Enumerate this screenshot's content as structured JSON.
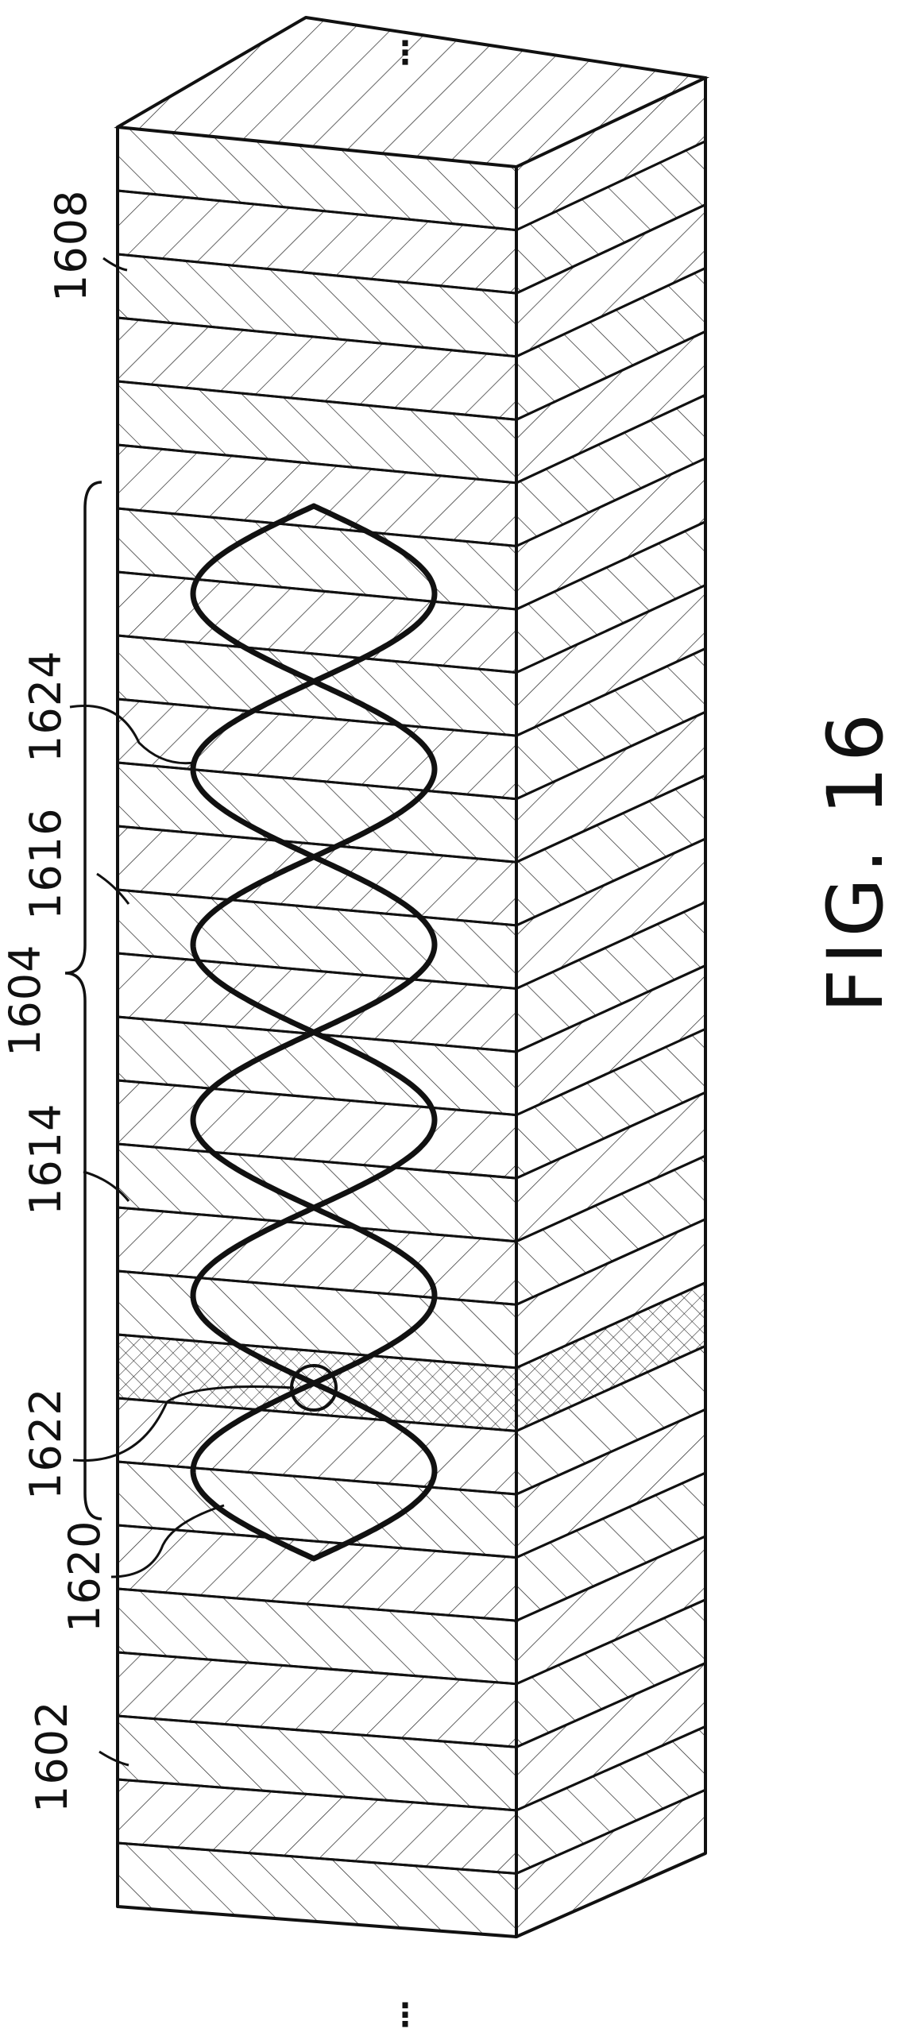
{
  "figure": {
    "caption": "FIG. 16",
    "continuation_marks": {
      "top": "⋮",
      "bottom": "⋮"
    }
  },
  "references": {
    "r1602": "1602",
    "r1604": "1604",
    "r1608": "1608",
    "r1614": "1614",
    "r1616": "1616",
    "r1620": "1620",
    "r1622": "1622",
    "r1624": "1624"
  },
  "layer_hatches": [
    "back",
    "fwd",
    "back",
    "fwd",
    "back",
    "fwd",
    "back",
    "fwd",
    "back",
    "fwd",
    "back",
    "fwd",
    "back",
    "fwd",
    "back",
    "fwd",
    "back",
    "fwd",
    "back",
    "cross",
    "fwd",
    "back",
    "fwd",
    "back",
    "fwd",
    "back",
    "fwd",
    "back"
  ],
  "wave_periods": 6,
  "colors": {
    "line": "#111111",
    "background": "#ffffff"
  }
}
